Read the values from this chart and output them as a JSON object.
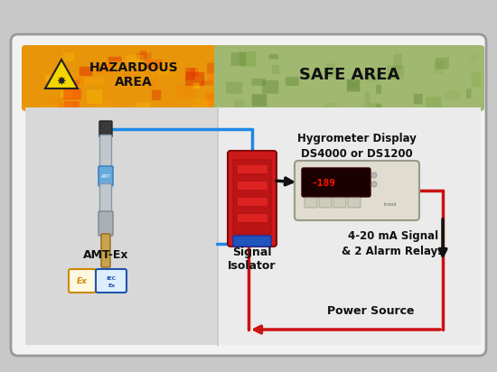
{
  "fig_width": 5.5,
  "fig_height": 4.12,
  "dpi": 100,
  "outer_bg": "#c8c8c8",
  "card_bg": "#f2f2f2",
  "card_border": "#999999",
  "haz_header_color": "#e8950a",
  "safe_header_color": "#a0b870",
  "haz_body_color": "#d8d8d8",
  "safe_body_color": "#ebebeb",
  "header_hazard_text": "HAZARDOUS\nAREA",
  "header_safe_text": "SAFE AREA",
  "amt_label": "AMT-Ex",
  "signal_isolator_label": "Signal\nIsolator",
  "hygrometer_title": "Hygrometer Display\nDS4000 or DS1200",
  "signal_label": "4-20 mA Signal\n& 2 Alarm Relays",
  "power_label": "Power Source",
  "wire_blue": "#1e88e5",
  "wire_black": "#111111",
  "wire_red": "#cc1111",
  "isolator_red": "#cc1a1a",
  "display_beige": "#e0ddd0",
  "display_screen_bg": "#1a0000"
}
